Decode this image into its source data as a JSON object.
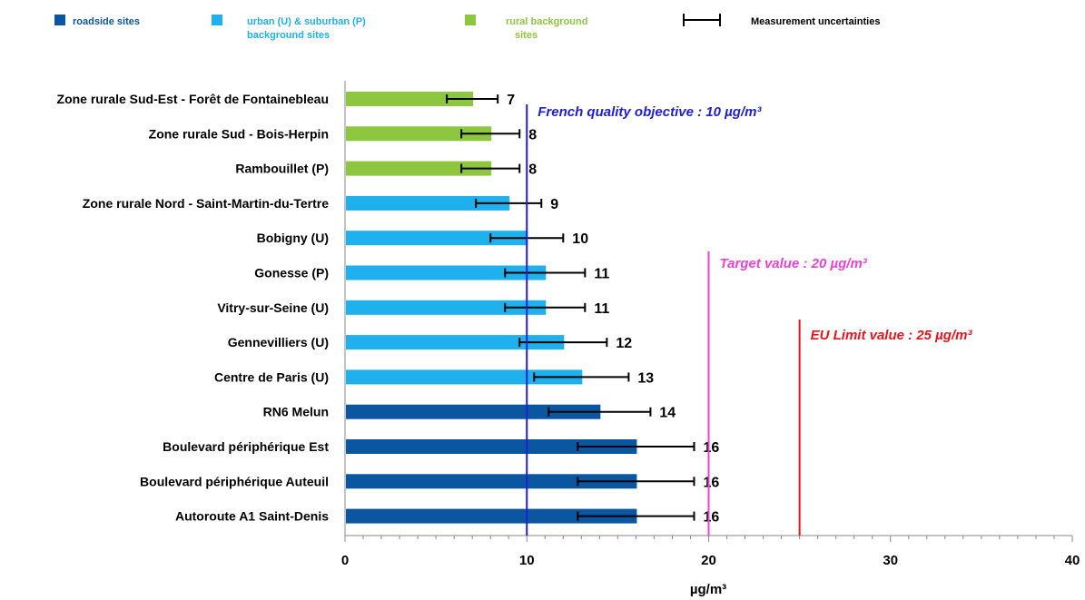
{
  "chart_data": {
    "type": "bar",
    "orientation": "horizontal",
    "xlabel": "µg/m³",
    "xlim": [
      0,
      40
    ],
    "xticks": [
      0,
      10,
      20,
      30,
      40
    ],
    "legend_position": "top",
    "categories": [
      {
        "label": "Zone rurale Sud-Est - Forêt de Fontainebleau",
        "value": 7,
        "err": 1.4,
        "group": "rural"
      },
      {
        "label": "Zone rurale Sud - Bois-Herpin",
        "value": 8,
        "err": 1.6,
        "group": "rural"
      },
      {
        "label": "Rambouillet (P)",
        "value": 8,
        "err": 1.6,
        "group": "rural"
      },
      {
        "label": "Zone rurale Nord - Saint-Martin-du-Tertre",
        "value": 9,
        "err": 1.8,
        "group": "urban"
      },
      {
        "label": "Bobigny (U)",
        "value": 10,
        "err": 2.0,
        "group": "urban"
      },
      {
        "label": "Gonesse (P)",
        "value": 11,
        "err": 2.2,
        "group": "urban"
      },
      {
        "label": "Vitry-sur-Seine (U)",
        "value": 11,
        "err": 2.2,
        "group": "urban"
      },
      {
        "label": "Gennevilliers (U)",
        "value": 12,
        "err": 2.4,
        "group": "urban"
      },
      {
        "label": "Centre de Paris (U)",
        "value": 13,
        "err": 2.6,
        "group": "urban"
      },
      {
        "label": "RN6 Melun",
        "value": 14,
        "err": 2.8,
        "group": "roadside"
      },
      {
        "label": "Boulevard périphérique Est",
        "value": 16,
        "err": 3.2,
        "group": "roadside"
      },
      {
        "label": "Boulevard périphérique Auteuil",
        "value": 16,
        "err": 3.2,
        "group": "roadside"
      },
      {
        "label": "Autoroute A1 Saint-Denis",
        "value": 16,
        "err": 3.2,
        "group": "roadside"
      }
    ],
    "groups": {
      "roadside": {
        "color": "#0b56a0"
      },
      "urban": {
        "color": "#1eb1ee"
      },
      "rural": {
        "color": "#8dc63f"
      }
    },
    "reference_lines": [
      {
        "value": 10,
        "label": "French quality objective : 10 µg/m³",
        "color": "#1f1fd1"
      },
      {
        "value": 20,
        "label": "Target value : 20 µg/m³",
        "color": "#ee3fd6"
      },
      {
        "value": 25,
        "label": "EU Limit value : 25 µg/m³",
        "color": "#e8141b"
      }
    ]
  },
  "legend": {
    "roadside": {
      "label": "roadside sites",
      "color": "#0b56a0"
    },
    "urban": {
      "label_line1": "urban (U) & suburban (P)",
      "label_line2": "background sites",
      "color": "#1eb1ee"
    },
    "rural": {
      "label_line1": "rural background",
      "label_line2": "sites",
      "color": "#8dc63f"
    },
    "uncertainty": {
      "label": "Measurement uncertainties",
      "color": "#000000"
    }
  }
}
